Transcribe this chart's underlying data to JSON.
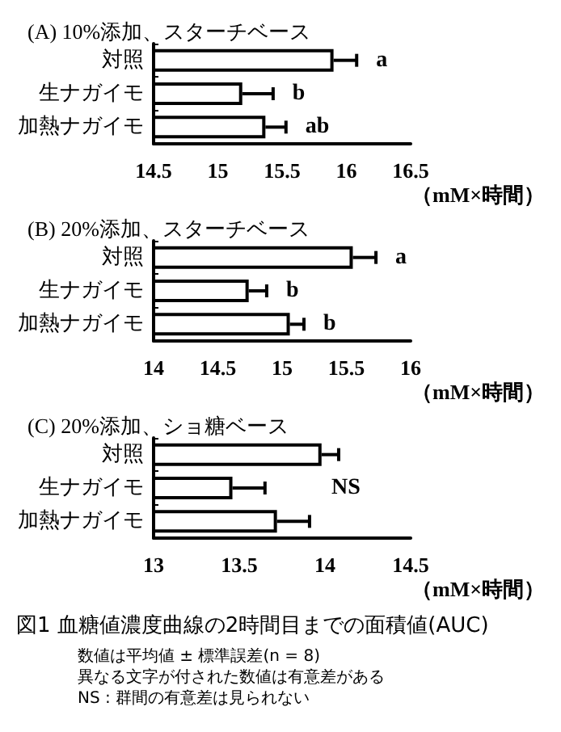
{
  "chart_data": [
    {
      "type": "bar",
      "orientation": "horizontal",
      "title": "(A) 10%添加、スターチベース",
      "xlabel": "（mM×時間）",
      "categories": [
        "対照",
        "生ナガイモ",
        "加熱ナガイモ"
      ],
      "series": [
        {
          "color": "#ffffff",
          "values": [
            15.9,
            15.19,
            15.37
          ],
          "errors": [
            [
              15.9,
              16.08
            ],
            [
              15.19,
              15.43
            ],
            [
              15.37,
              15.53
            ]
          ]
        }
      ],
      "xlim": [
        14.5,
        16.5
      ],
      "xticks": [
        14.5,
        15,
        15.5,
        16,
        16.5
      ],
      "grid": false,
      "annotations": [
        "a",
        "b",
        "ab"
      ]
    },
    {
      "type": "bar",
      "orientation": "horizontal",
      "title": "(B) 20%添加、スターチベース",
      "xlabel": "（mM×時間）",
      "categories": [
        "対照",
        "生ナガイモ",
        "加熱ナガイモ"
      ],
      "series": [
        {
          "color": "#ffffff",
          "values": [
            15.55,
            14.74,
            15.06
          ],
          "errors": [
            [
              15.55,
              15.73
            ],
            [
              14.74,
              14.88
            ],
            [
              15.06,
              15.17
            ]
          ]
        }
      ],
      "xlim": [
        14,
        16
      ],
      "xticks": [
        14,
        14.5,
        15,
        15.5,
        16
      ],
      "grid": false,
      "annotations": [
        "a",
        "b",
        "b"
      ]
    },
    {
      "type": "bar",
      "orientation": "horizontal",
      "title": "(C) 20%添加、ショ糖ベース",
      "xlabel": "（mM×時間）",
      "categories": [
        "対照",
        "生ナガイモ",
        "加熱ナガイモ"
      ],
      "series": [
        {
          "color": "#ffffff",
          "values": [
            13.98,
            13.46,
            13.72
          ],
          "errors": [
            [
              13.98,
              14.08
            ],
            [
              13.46,
              13.65
            ],
            [
              13.72,
              13.91
            ]
          ]
        }
      ],
      "xlim": [
        13,
        14.5
      ],
      "xticks": [
        13,
        13.5,
        14,
        14.5
      ],
      "grid": false,
      "annotations": [
        "NS"
      ]
    },
    {
      "type": "other",
      "title": "図1 血糖値濃度曲線の2時間目までの面積値(AUC)",
      "annotations": [
        "数値は平均値 ± 標準誤差(n = 8)",
        "異なる文字が付された数値は有意差がある",
        "NS : 群間の有意差は見られない"
      ]
    }
  ]
}
